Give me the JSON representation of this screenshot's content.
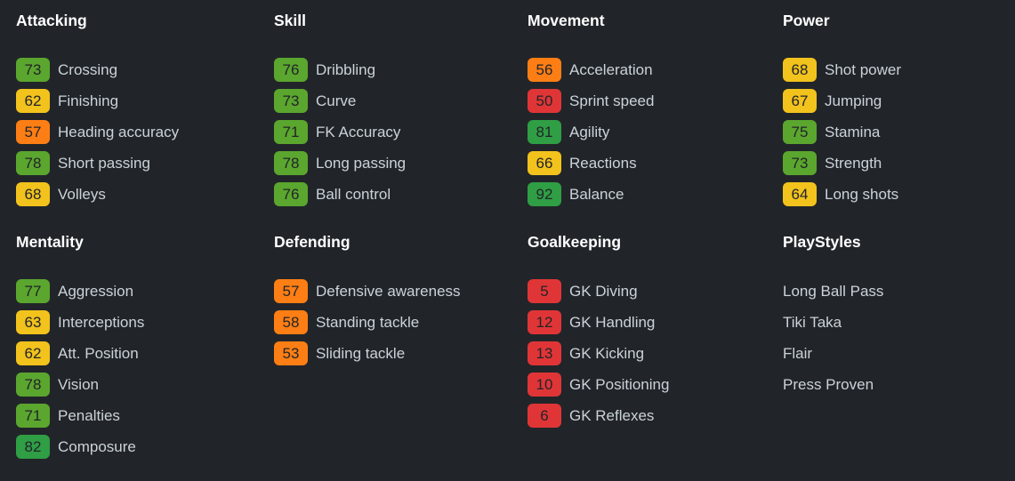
{
  "theme": {
    "background": "#212529",
    "heading_color": "#ffffff",
    "label_color": "#cbd2d9",
    "badge_text_color": "#212529",
    "tier_colors": {
      "great": "#2f9e44",
      "good": "#5ba62e",
      "fair": "#f2c21d",
      "poor": "#fd7e14",
      "bad": "#e03537"
    }
  },
  "sections": [
    {
      "title": "Attacking",
      "row": 1,
      "stats": [
        {
          "value": "73",
          "label": "Crossing",
          "tier": "good"
        },
        {
          "value": "62",
          "label": "Finishing",
          "tier": "fair"
        },
        {
          "value": "57",
          "label": "Heading accuracy",
          "tier": "poor"
        },
        {
          "value": "78",
          "label": "Short passing",
          "tier": "good"
        },
        {
          "value": "68",
          "label": "Volleys",
          "tier": "fair"
        }
      ]
    },
    {
      "title": "Skill",
      "row": 1,
      "stats": [
        {
          "value": "76",
          "label": "Dribbling",
          "tier": "good"
        },
        {
          "value": "73",
          "label": "Curve",
          "tier": "good"
        },
        {
          "value": "71",
          "label": "FK Accuracy",
          "tier": "good"
        },
        {
          "value": "78",
          "label": "Long passing",
          "tier": "good"
        },
        {
          "value": "76",
          "label": "Ball control",
          "tier": "good"
        }
      ]
    },
    {
      "title": "Movement",
      "row": 1,
      "stats": [
        {
          "value": "56",
          "label": "Acceleration",
          "tier": "poor"
        },
        {
          "value": "50",
          "label": "Sprint speed",
          "tier": "bad"
        },
        {
          "value": "81",
          "label": "Agility",
          "tier": "great"
        },
        {
          "value": "66",
          "label": "Reactions",
          "tier": "fair"
        },
        {
          "value": "92",
          "label": "Balance",
          "tier": "great"
        }
      ]
    },
    {
      "title": "Power",
      "row": 1,
      "stats": [
        {
          "value": "68",
          "label": "Shot power",
          "tier": "fair"
        },
        {
          "value": "67",
          "label": "Jumping",
          "tier": "fair"
        },
        {
          "value": "75",
          "label": "Stamina",
          "tier": "good"
        },
        {
          "value": "73",
          "label": "Strength",
          "tier": "good"
        },
        {
          "value": "64",
          "label": "Long shots",
          "tier": "fair"
        }
      ]
    },
    {
      "title": "Mentality",
      "row": 2,
      "stats": [
        {
          "value": "77",
          "label": "Aggression",
          "tier": "good"
        },
        {
          "value": "63",
          "label": "Interceptions",
          "tier": "fair"
        },
        {
          "value": "62",
          "label": "Att. Position",
          "tier": "fair"
        },
        {
          "value": "78",
          "label": "Vision",
          "tier": "good"
        },
        {
          "value": "71",
          "label": "Penalties",
          "tier": "good"
        },
        {
          "value": "82",
          "label": "Composure",
          "tier": "great"
        }
      ]
    },
    {
      "title": "Defending",
      "row": 2,
      "stats": [
        {
          "value": "57",
          "label": "Defensive awareness",
          "tier": "poor"
        },
        {
          "value": "58",
          "label": "Standing tackle",
          "tier": "poor"
        },
        {
          "value": "53",
          "label": "Sliding tackle",
          "tier": "poor"
        }
      ]
    },
    {
      "title": "Goalkeeping",
      "row": 2,
      "stats": [
        {
          "value": "5",
          "label": "GK Diving",
          "tier": "bad"
        },
        {
          "value": "12",
          "label": "GK Handling",
          "tier": "bad"
        },
        {
          "value": "13",
          "label": "GK Kicking",
          "tier": "bad"
        },
        {
          "value": "10",
          "label": "GK Positioning",
          "tier": "bad"
        },
        {
          "value": "6",
          "label": "GK Reflexes",
          "tier": "bad"
        }
      ]
    },
    {
      "title": "PlayStyles",
      "row": 2,
      "items": [
        "Long Ball Pass",
        "Tiki Taka",
        "Flair",
        "Press Proven"
      ]
    }
  ]
}
